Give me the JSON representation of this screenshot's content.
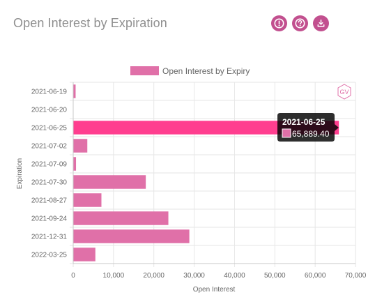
{
  "header": {
    "title": "Open Interest by Expiration",
    "icons": [
      "alert-icon",
      "help-icon",
      "download-icon"
    ]
  },
  "colors": {
    "bar": "#e070a8",
    "bar_highlight": "#ff3e8f",
    "icon_bg": "#c2508f",
    "tooltip_bg": "#000000",
    "grid": "#e6e6e6"
  },
  "watermark": "GV",
  "tooltip": {
    "title": "2021-06-25",
    "value_text": "65,889.40"
  },
  "chart_data": {
    "type": "bar",
    "orientation": "horizontal",
    "categories": [
      "2021-06-19",
      "2021-06-20",
      "2021-06-25",
      "2021-07-02",
      "2021-07-09",
      "2021-07-30",
      "2021-08-27",
      "2021-09-24",
      "2021-12-31",
      "2022-03-25"
    ],
    "series": [
      {
        "name": "Open Interest by Expiry",
        "values": [
          600,
          0,
          65889.4,
          3500,
          700,
          18000,
          7000,
          23600,
          28800,
          5500
        ]
      }
    ],
    "highlighted_category": "2021-06-25",
    "xlabel": "Open Interest",
    "ylabel": "Expiration",
    "xlim": [
      0,
      70000
    ],
    "xticks": [
      "0",
      "10,000",
      "20,000",
      "30,000",
      "40,000",
      "50,000",
      "60,000",
      "70,000"
    ],
    "grid": true,
    "legend": "top-center"
  }
}
